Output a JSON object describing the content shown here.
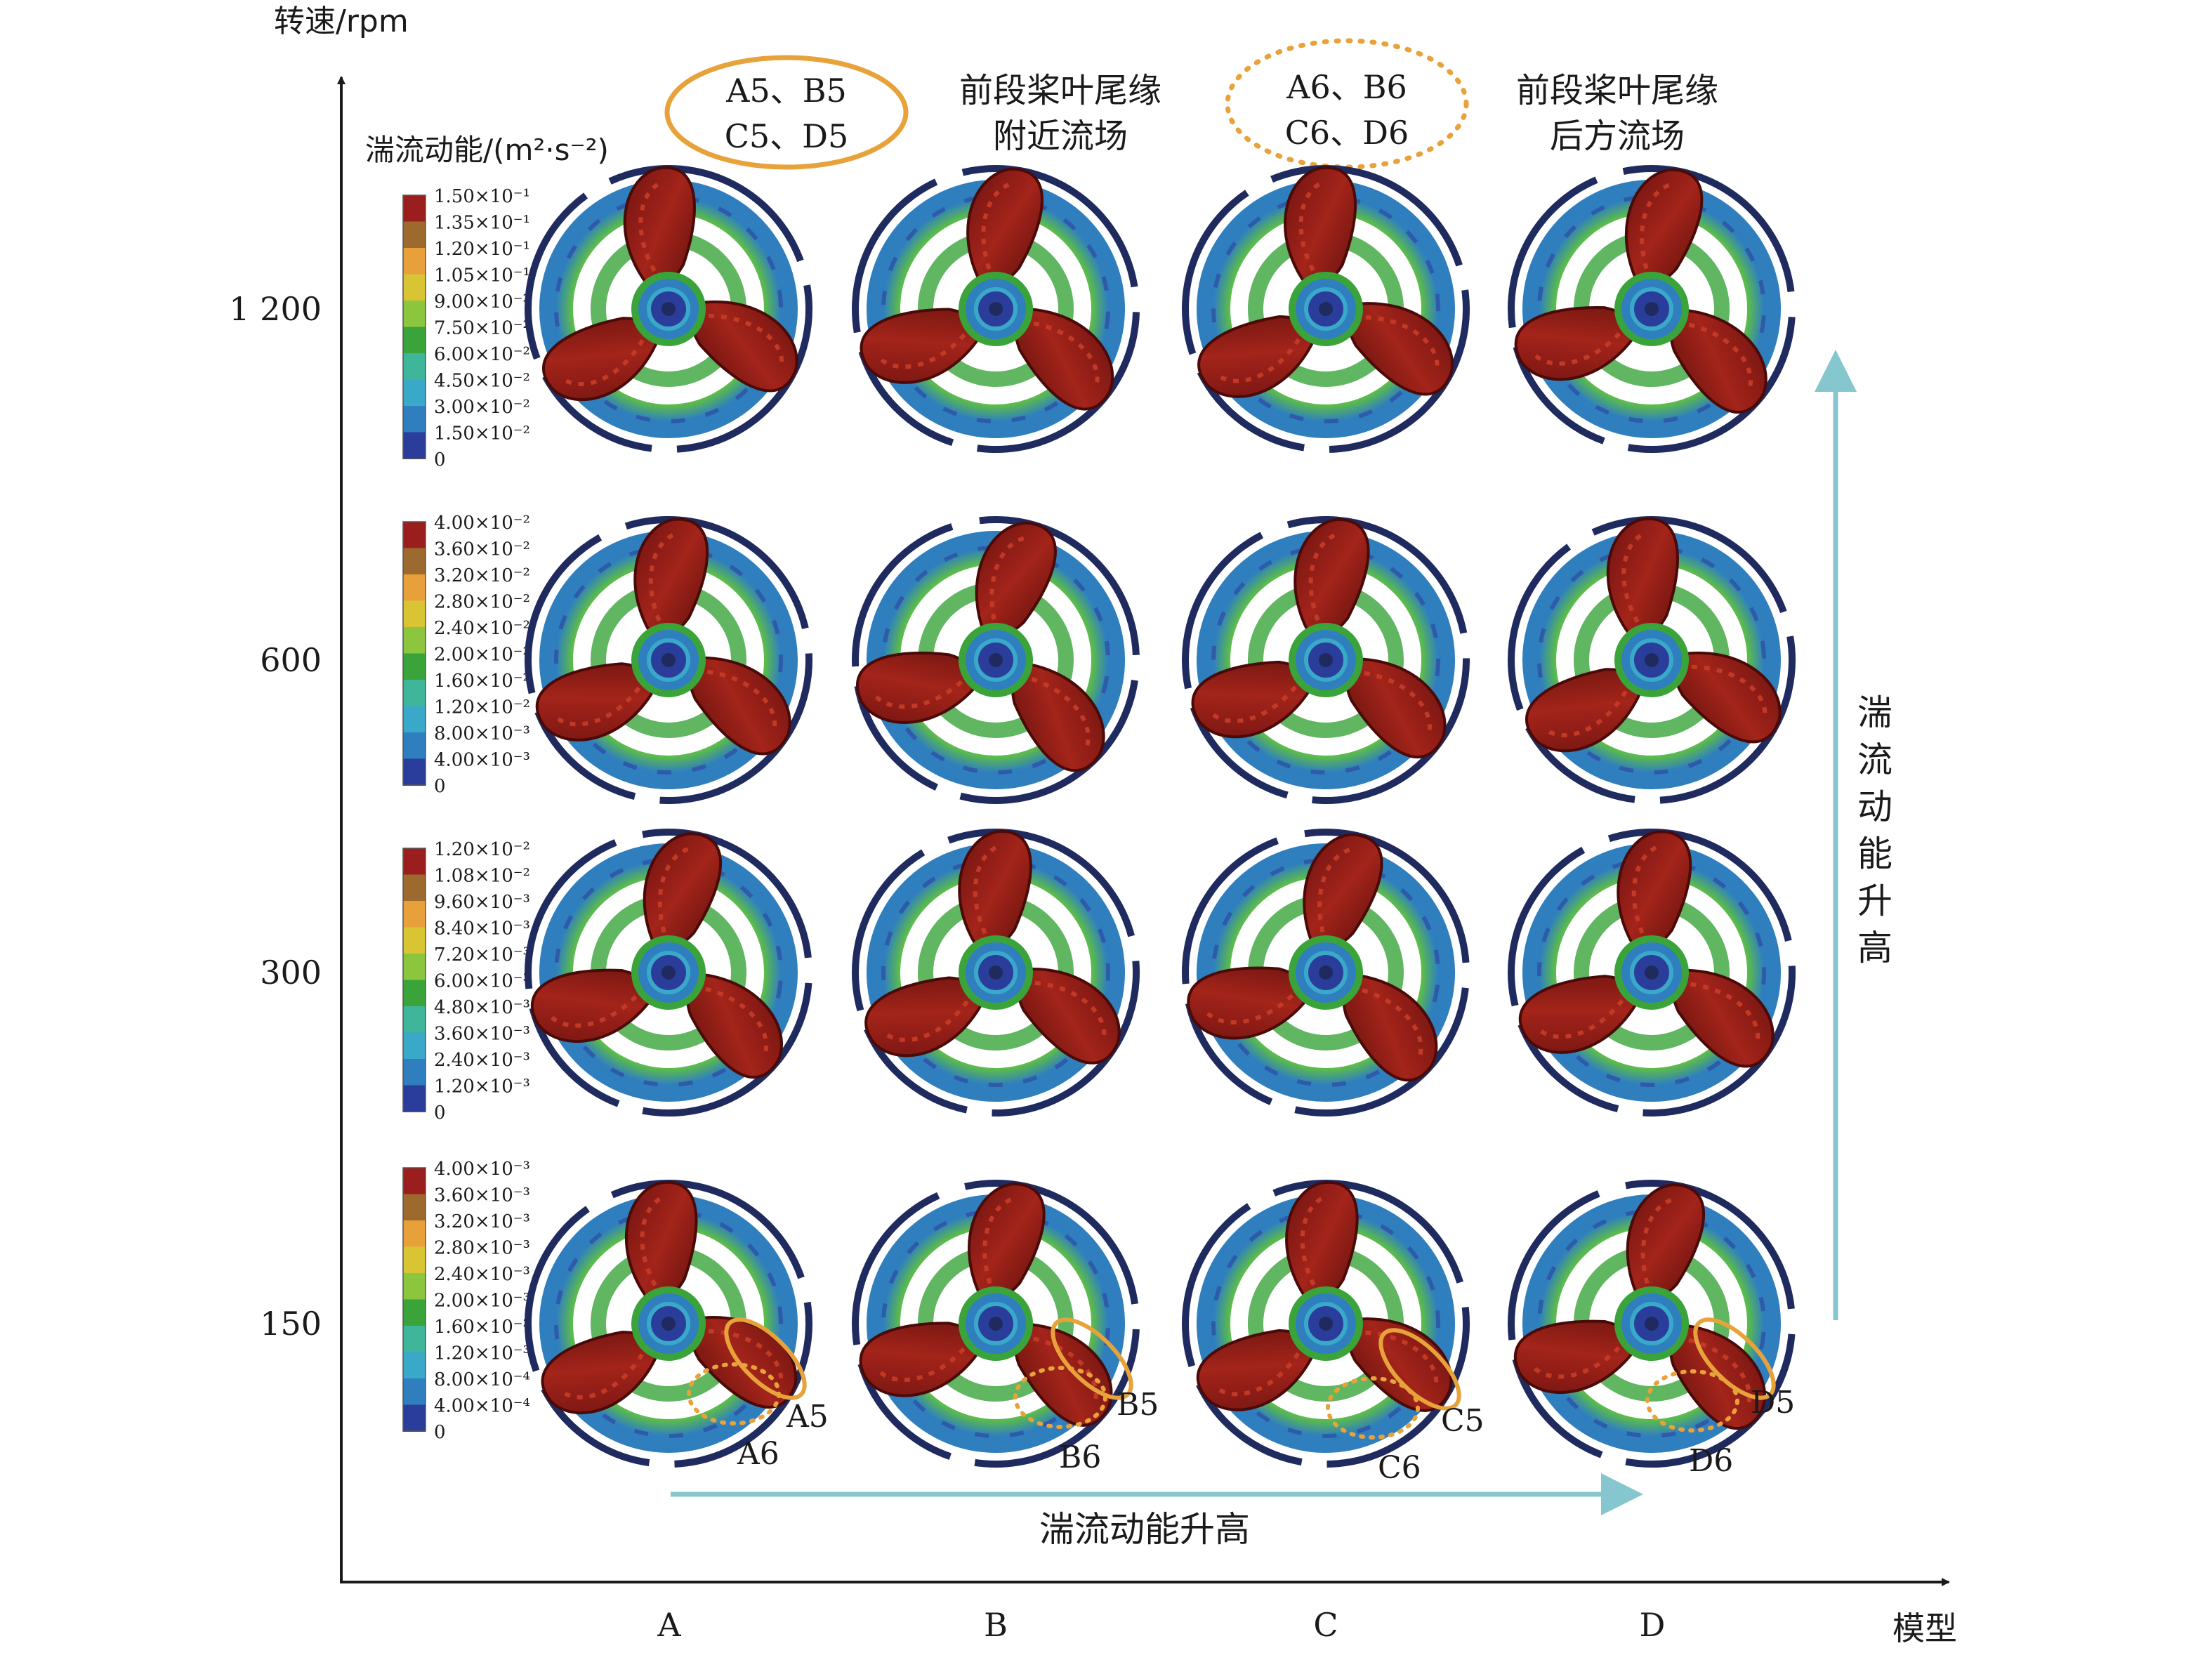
{
  "axes": {
    "y_label": "转速/rpm",
    "x_label": "模型",
    "y_ticks": [
      "1 200",
      "600",
      "300",
      "150"
    ],
    "x_ticks": [
      "A",
      "B",
      "C",
      "D"
    ]
  },
  "colorbar_title": "湍流动能/(m²·s⁻²)",
  "colorbar_colors": [
    "#2b3d9b",
    "#2f7fbf",
    "#3aa9c9",
    "#3fb59a",
    "#3aa43a",
    "#8cc63f",
    "#d9c533",
    "#e8a13a",
    "#9c6a2e",
    "#9b1e1e"
  ],
  "colorbars": [
    {
      "labels": [
        "1.50×10⁻¹",
        "1.35×10⁻¹",
        "1.20×10⁻¹",
        "1.05×10⁻¹",
        "9.00×10⁻²",
        "7.50×10⁻²",
        "6.00×10⁻²",
        "4.50×10⁻²",
        "3.00×10⁻²",
        "1.50×10⁻²",
        "0"
      ]
    },
    {
      "labels": [
        "4.00×10⁻²",
        "3.60×10⁻²",
        "3.20×10⁻²",
        "2.80×10⁻²",
        "2.40×10⁻²",
        "2.00×10⁻²",
        "1.60×10⁻²",
        "1.20×10⁻²",
        "8.00×10⁻³",
        "4.00×10⁻³",
        "0"
      ]
    },
    {
      "labels": [
        "1.20×10⁻²",
        "1.08×10⁻²",
        "9.60×10⁻³",
        "8.40×10⁻³",
        "7.20×10⁻³",
        "6.00×10⁻³",
        "4.80×10⁻³",
        "3.60×10⁻³",
        "2.40×10⁻³",
        "1.20×10⁻³",
        "0"
      ]
    },
    {
      "labels": [
        "4.00×10⁻³",
        "3.60×10⁻³",
        "3.20×10⁻³",
        "2.80×10⁻³",
        "2.40×10⁻³",
        "2.00×10⁻³",
        "1.60×10⁻³",
        "1.20×10⁻³",
        "8.00×10⁻⁴",
        "4.00×10⁻⁴",
        "0"
      ]
    }
  ],
  "legend": {
    "solid_line1": "A5、B5",
    "solid_line2": "C5、D5",
    "solid_desc1": "前段桨叶尾缘",
    "solid_desc2": "附近流场",
    "dotted_line1": "A6、B6",
    "dotted_line2": "C6、D6",
    "dotted_desc1": "后方流场",
    "dotted_desc_prefix": "前段桨叶尾缘"
  },
  "arrows": {
    "horizontal_label": "湍流动能升高",
    "vertical_chars": [
      "湍",
      "流",
      "动",
      "能",
      "升",
      "高"
    ]
  },
  "annotations": [
    {
      "solid": "A5",
      "dotted": "A6"
    },
    {
      "solid": "B5",
      "dotted": "B6"
    },
    {
      "solid": "C5",
      "dotted": "C6"
    },
    {
      "solid": "D5",
      "dotted": "D6"
    }
  ],
  "colors": {
    "ellipse": "#e8a23a",
    "arrow": "#86c7cf",
    "ring_dark": "#1f2a5e",
    "blade": "#8c1a14"
  }
}
